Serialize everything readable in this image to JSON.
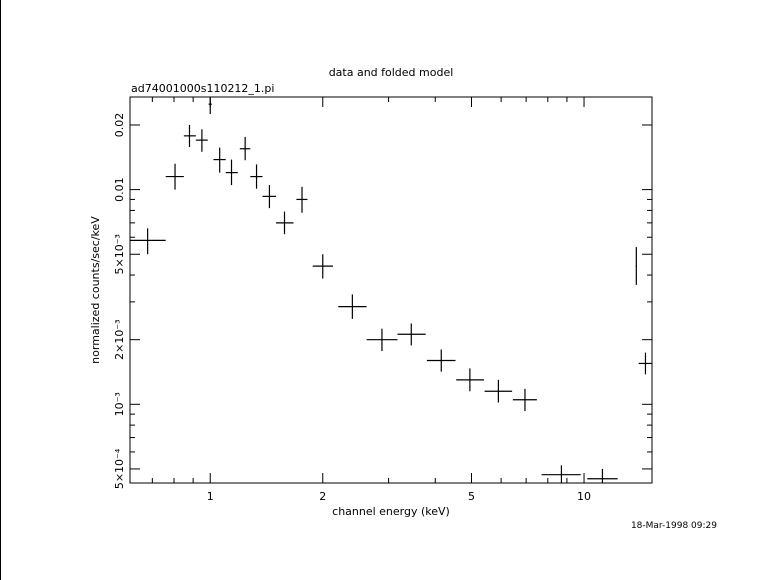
{
  "chart_data": {
    "type": "scatter",
    "title": "data and folded model",
    "subtitle": "ad74001000s110212_1.pi",
    "xlabel": "channel energy (keV)",
    "ylabel": "normalized counts/sec/keV",
    "x_scale": "log",
    "y_scale": "log",
    "xlim": [
      0.61,
      15.2
    ],
    "ylim": [
      0.00043,
      0.027
    ],
    "x_ticks": [
      {
        "value": 1,
        "label": "1"
      },
      {
        "value": 2,
        "label": "2"
      },
      {
        "value": 5,
        "label": "5"
      },
      {
        "value": 10,
        "label": "10"
      }
    ],
    "y_ticks": [
      {
        "value": 0.0005,
        "label": "5×10⁻⁴"
      },
      {
        "value": 0.001,
        "label": "10⁻³"
      },
      {
        "value": 0.002,
        "label": "2×10⁻³"
      },
      {
        "value": 0.005,
        "label": "5×10⁻³"
      },
      {
        "value": 0.01,
        "label": "0.01"
      },
      {
        "value": 0.02,
        "label": "0.02"
      }
    ],
    "grid": false,
    "points": [
      {
        "x": 0.68,
        "x_lo": 0.61,
        "x_hi": 0.76,
        "y": 0.0058,
        "y_lo": 0.005,
        "y_hi": 0.0066
      },
      {
        "x": 0.805,
        "x_lo": 0.76,
        "x_hi": 0.85,
        "y": 0.0115,
        "y_lo": 0.01,
        "y_hi": 0.0132
      },
      {
        "x": 0.88,
        "x_lo": 0.85,
        "x_hi": 0.915,
        "y": 0.0178,
        "y_lo": 0.0158,
        "y_hi": 0.02
      },
      {
        "x": 0.95,
        "x_lo": 0.915,
        "x_hi": 0.985,
        "y": 0.017,
        "y_lo": 0.015,
        "y_hi": 0.0191
      },
      {
        "x": 1.0,
        "x_lo": 0.99,
        "x_hi": 1.01,
        "y": 0.025,
        "y_lo": 0.0225,
        "y_hi": 0.027
      },
      {
        "x": 1.06,
        "x_lo": 1.02,
        "x_hi": 1.1,
        "y": 0.0138,
        "y_lo": 0.012,
        "y_hi": 0.0157
      },
      {
        "x": 1.14,
        "x_lo": 1.1,
        "x_hi": 1.185,
        "y": 0.012,
        "y_lo": 0.0105,
        "y_hi": 0.0138
      },
      {
        "x": 1.24,
        "x_lo": 1.2,
        "x_hi": 1.28,
        "y": 0.0155,
        "y_lo": 0.0137,
        "y_hi": 0.0176
      },
      {
        "x": 1.33,
        "x_lo": 1.28,
        "x_hi": 1.38,
        "y": 0.0115,
        "y_lo": 0.0101,
        "y_hi": 0.0131
      },
      {
        "x": 1.44,
        "x_lo": 1.38,
        "x_hi": 1.5,
        "y": 0.0093,
        "y_lo": 0.0082,
        "y_hi": 0.0105
      },
      {
        "x": 1.58,
        "x_lo": 1.5,
        "x_hi": 1.67,
        "y": 0.007,
        "y_lo": 0.0062,
        "y_hi": 0.0079
      },
      {
        "x": 1.76,
        "x_lo": 1.7,
        "x_hi": 1.82,
        "y": 0.009,
        "y_lo": 0.0078,
        "y_hi": 0.0103
      },
      {
        "x": 2.0,
        "x_lo": 1.88,
        "x_hi": 2.13,
        "y": 0.0044,
        "y_lo": 0.00385,
        "y_hi": 0.005
      },
      {
        "x": 2.4,
        "x_lo": 2.2,
        "x_hi": 2.62,
        "y": 0.00285,
        "y_lo": 0.0025,
        "y_hi": 0.00325
      },
      {
        "x": 2.88,
        "x_lo": 2.62,
        "x_hi": 3.17,
        "y": 0.002,
        "y_lo": 0.00177,
        "y_hi": 0.00225
      },
      {
        "x": 3.45,
        "x_lo": 3.17,
        "x_hi": 3.77,
        "y": 0.00212,
        "y_lo": 0.00188,
        "y_hi": 0.00238
      },
      {
        "x": 4.15,
        "x_lo": 3.8,
        "x_hi": 4.53,
        "y": 0.0016,
        "y_lo": 0.00142,
        "y_hi": 0.0018
      },
      {
        "x": 4.95,
        "x_lo": 4.55,
        "x_hi": 5.4,
        "y": 0.0013,
        "y_lo": 0.00115,
        "y_hi": 0.00147
      },
      {
        "x": 5.9,
        "x_lo": 5.42,
        "x_hi": 6.42,
        "y": 0.00115,
        "y_lo": 0.00102,
        "y_hi": 0.0013
      },
      {
        "x": 6.95,
        "x_lo": 6.45,
        "x_hi": 7.48,
        "y": 0.00105,
        "y_lo": 0.00093,
        "y_hi": 0.00118
      },
      {
        "x": 8.7,
        "x_lo": 7.7,
        "x_hi": 9.8,
        "y": 0.00047,
        "y_lo": 0.00043,
        "y_hi": 0.00052
      },
      {
        "x": 11.2,
        "x_lo": 10.2,
        "x_hi": 12.3,
        "y": 0.00045,
        "y_lo": 0.00043,
        "y_hi": 0.0005
      },
      {
        "x": 13.8,
        "x_lo": 13.75,
        "x_hi": 13.85,
        "y": 0.0044,
        "y_lo": 0.0036,
        "y_hi": 0.0054
      },
      {
        "x": 14.6,
        "x_lo": 14.0,
        "x_hi": 15.15,
        "y": 0.00155,
        "y_lo": 0.00138,
        "y_hi": 0.00174
      }
    ]
  },
  "footer": {
    "timestamp": "18-Mar-1998 09:29"
  }
}
